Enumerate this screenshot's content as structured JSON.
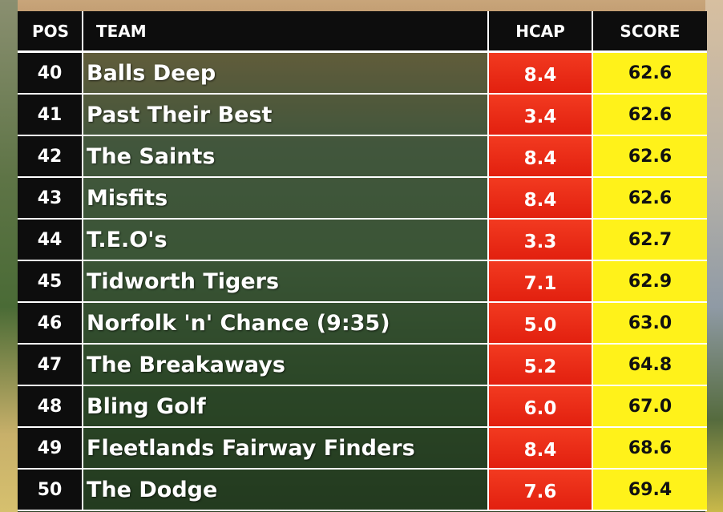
{
  "leaderboard": {
    "headers": {
      "pos": "POS",
      "team": "TEAM",
      "hcap": "HCAP",
      "score": "SCORE"
    },
    "rows": [
      {
        "pos": "40",
        "team": "Balls Deep",
        "hcap": "8.4",
        "score": "62.6"
      },
      {
        "pos": "41",
        "team": "Past Their Best",
        "hcap": "3.4",
        "score": "62.6"
      },
      {
        "pos": "42",
        "team": "The Saints",
        "hcap": "8.4",
        "score": "62.6"
      },
      {
        "pos": "43",
        "team": "Misfits",
        "hcap": "8.4",
        "score": "62.6"
      },
      {
        "pos": "44",
        "team": "T.E.O's",
        "hcap": "3.3",
        "score": "62.7"
      },
      {
        "pos": "45",
        "team": "Tidworth Tigers",
        "hcap": "7.1",
        "score": "62.9"
      },
      {
        "pos": "46",
        "team": "Norfolk 'n' Chance (9:35)",
        "hcap": "5.0",
        "score": "63.0"
      },
      {
        "pos": "47",
        "team": "The Breakaways",
        "hcap": "5.2",
        "score": "64.8"
      },
      {
        "pos": "48",
        "team": "Bling Golf",
        "hcap": "6.0",
        "score": "67.0"
      },
      {
        "pos": "49",
        "team": "Fleetlands Fairway Finders",
        "hcap": "8.4",
        "score": "68.6"
      },
      {
        "pos": "50",
        "team": "The Dodge",
        "hcap": "7.6",
        "score": "69.4"
      }
    ]
  },
  "colors": {
    "header_bg": "#0d0d0d",
    "hcap_bg": "#e8280f",
    "score_bg": "#fff21a",
    "team_bg": "#1e371e"
  }
}
